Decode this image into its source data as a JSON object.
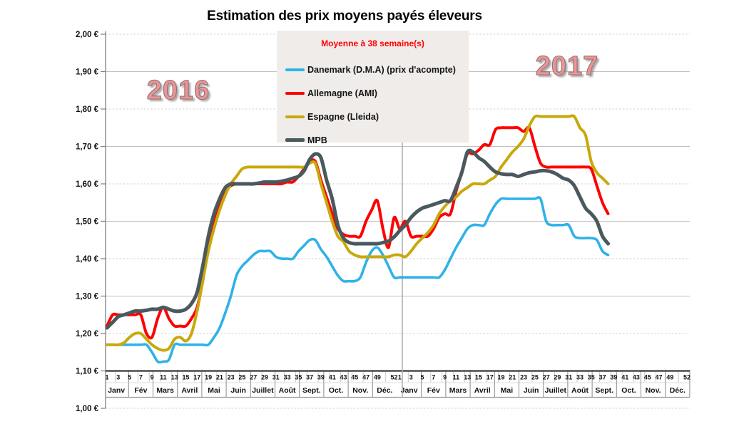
{
  "title": "Estimation des prix moyens payés éleveurs",
  "legend": {
    "title": "Moyenne à  38 semaine(s)",
    "title_color": "#FF0000",
    "items": [
      {
        "label": "Danemark (D.M.A) (prix d'acompte)",
        "color": "#2EB2E8",
        "thickness": 4
      },
      {
        "label": "Allemagne (AMI)",
        "color": "#FE0000",
        "thickness": 4
      },
      {
        "label": "Espagne (Lleida)",
        "color": "#C7A90C",
        "thickness": 4
      },
      {
        "label": "MPB",
        "color": "#4A595D",
        "thickness": 5
      }
    ]
  },
  "year_labels": {
    "left": {
      "text": "2016"
    },
    "right": {
      "text": "2017"
    }
  },
  "chart_data": {
    "type": "line",
    "title": "Estimation des prix moyens payés éleveurs",
    "ylabel": "",
    "xlabel": "",
    "ylim": [
      1.0,
      2.0
    ],
    "grid": "horizontal, alternating solid (1,10/1,30/1,50/1,70/1,90) and dashed (1,00/1,20/1,40/1,60/1,80/2,00)",
    "legend_position": "top-center",
    "y_axis": {
      "tick_labels": [
        "2,00 €",
        "1,90 €",
        "1,80 €",
        "1,70 €",
        "1,60 €",
        "1,50 €",
        "1,40 €",
        "1,30 €",
        "1,20 €",
        "1,10 €",
        "1,00 €"
      ],
      "tick_values": [
        2.0,
        1.9,
        1.8,
        1.7,
        1.6,
        1.5,
        1.4,
        1.3,
        1.2,
        1.1,
        1.0
      ],
      "axis_cross_value": 1.1
    },
    "x_axis": {
      "weeks_per_year": 52,
      "week_labels": [
        "1",
        "3",
        "5",
        "7",
        "9",
        "11",
        "13",
        "15",
        "17",
        "19",
        "21",
        "23",
        "25",
        "27",
        "29",
        "31",
        "33",
        "35",
        "37",
        "39",
        "41",
        "43",
        "45",
        "47",
        "49",
        "52"
      ],
      "months": [
        "Janv",
        "Fév",
        "Mars",
        "Avril",
        "Mai",
        "Juin",
        "Juillet",
        "Août",
        "Sept.",
        "Oct.",
        "Nov.",
        "Déc."
      ],
      "years": [
        "2016",
        "2017"
      ],
      "data_ends": "2017 week 38"
    },
    "series": [
      {
        "name": "Danemark (D.M.A) (prix d'acompte)",
        "color": "#2EB2E8",
        "width": 3.6,
        "values_2016": [
          1.17,
          1.17,
          1.17,
          1.17,
          1.17,
          1.17,
          1.17,
          1.17,
          1.15,
          1.125,
          1.125,
          1.13,
          1.17,
          1.17,
          1.17,
          1.17,
          1.17,
          1.17,
          1.17,
          1.19,
          1.215,
          1.255,
          1.3,
          1.355,
          1.38,
          1.395,
          1.41,
          1.42,
          1.42,
          1.42,
          1.405,
          1.4,
          1.4,
          1.4,
          1.42,
          1.435,
          1.45,
          1.45,
          1.425,
          1.405,
          1.38,
          1.355,
          1.34,
          1.34,
          1.34,
          1.35,
          1.39,
          1.42,
          1.43,
          1.41,
          1.38,
          1.35
        ],
        "values_2017": [
          1.35,
          1.35,
          1.35,
          1.35,
          1.35,
          1.35,
          1.35,
          1.35,
          1.37,
          1.4,
          1.43,
          1.455,
          1.48,
          1.49,
          1.49,
          1.49,
          1.52,
          1.545,
          1.56,
          1.56,
          1.56,
          1.56,
          1.56,
          1.56,
          1.56,
          1.56,
          1.5,
          1.49,
          1.49,
          1.49,
          1.49,
          1.46,
          1.455,
          1.455,
          1.455,
          1.45,
          1.42,
          1.41
        ]
      },
      {
        "name": "Allemagne (AMI)",
        "color": "#FE0000",
        "width": 4,
        "values_2016": [
          1.22,
          1.25,
          1.25,
          1.25,
          1.25,
          1.25,
          1.25,
          1.2,
          1.19,
          1.24,
          1.27,
          1.24,
          1.22,
          1.22,
          1.22,
          1.24,
          1.27,
          1.34,
          1.43,
          1.5,
          1.55,
          1.58,
          1.595,
          1.6,
          1.6,
          1.6,
          1.6,
          1.6,
          1.6,
          1.6,
          1.6,
          1.6,
          1.605,
          1.605,
          1.62,
          1.64,
          1.66,
          1.66,
          1.61,
          1.565,
          1.52,
          1.48,
          1.465,
          1.46,
          1.46,
          1.46,
          1.5,
          1.53,
          1.555,
          1.48,
          1.43,
          1.51
        ],
        "values_2017": [
          1.48,
          1.5,
          1.46,
          1.46,
          1.46,
          1.46,
          1.48,
          1.51,
          1.52,
          1.52,
          1.58,
          1.63,
          1.68,
          1.68,
          1.69,
          1.705,
          1.705,
          1.745,
          1.75,
          1.75,
          1.75,
          1.75,
          1.74,
          1.75,
          1.7,
          1.655,
          1.645,
          1.645,
          1.645,
          1.645,
          1.645,
          1.645,
          1.645,
          1.645,
          1.64,
          1.595,
          1.55,
          1.52
        ]
      },
      {
        "name": "Espagne (Lleida)",
        "color": "#C7A90C",
        "width": 4,
        "values_2016": [
          1.17,
          1.17,
          1.17,
          1.175,
          1.19,
          1.2,
          1.2,
          1.185,
          1.17,
          1.16,
          1.155,
          1.16,
          1.185,
          1.19,
          1.18,
          1.2,
          1.26,
          1.34,
          1.42,
          1.48,
          1.53,
          1.57,
          1.6,
          1.62,
          1.64,
          1.645,
          1.645,
          1.645,
          1.645,
          1.645,
          1.645,
          1.645,
          1.645,
          1.645,
          1.645,
          1.645,
          1.655,
          1.655,
          1.6,
          1.55,
          1.5,
          1.46,
          1.445,
          1.42,
          1.41,
          1.405,
          1.405,
          1.405,
          1.405,
          1.405,
          1.405,
          1.41
        ],
        "values_2017": [
          1.41,
          1.405,
          1.42,
          1.44,
          1.455,
          1.47,
          1.49,
          1.52,
          1.54,
          1.555,
          1.565,
          1.58,
          1.59,
          1.6,
          1.6,
          1.6,
          1.61,
          1.62,
          1.645,
          1.665,
          1.685,
          1.7,
          1.72,
          1.755,
          1.78,
          1.78,
          1.78,
          1.78,
          1.78,
          1.78,
          1.78,
          1.78,
          1.75,
          1.73,
          1.66,
          1.63,
          1.615,
          1.6
        ]
      },
      {
        "name": "MPB",
        "color": "#4A595D",
        "width": 5,
        "values_2016": [
          1.215,
          1.23,
          1.245,
          1.25,
          1.255,
          1.26,
          1.26,
          1.262,
          1.265,
          1.265,
          1.27,
          1.265,
          1.26,
          1.26,
          1.265,
          1.28,
          1.31,
          1.38,
          1.46,
          1.52,
          1.56,
          1.59,
          1.6,
          1.6,
          1.6,
          1.6,
          1.6,
          1.602,
          1.605,
          1.605,
          1.605,
          1.607,
          1.61,
          1.615,
          1.62,
          1.635,
          1.665,
          1.68,
          1.67,
          1.61,
          1.56,
          1.49,
          1.455,
          1.443,
          1.44,
          1.44,
          1.44,
          1.44,
          1.44,
          1.443,
          1.447,
          1.458
        ],
        "values_2017": [
          1.475,
          1.49,
          1.51,
          1.525,
          1.535,
          1.54,
          1.545,
          1.55,
          1.555,
          1.555,
          1.59,
          1.63,
          1.685,
          1.685,
          1.67,
          1.66,
          1.645,
          1.632,
          1.627,
          1.625,
          1.625,
          1.62,
          1.625,
          1.63,
          1.632,
          1.635,
          1.635,
          1.632,
          1.625,
          1.615,
          1.61,
          1.595,
          1.565,
          1.535,
          1.52,
          1.5,
          1.46,
          1.44
        ]
      }
    ]
  },
  "colors": {
    "grid_solid": "#C0C0C0",
    "grid_dashed": "#CDCDCD",
    "axis": "#7F7F7F",
    "axis_bold": "#4D4D4D",
    "month_separator": "#8C8C8C",
    "week_tick": "#C6C6C6",
    "year_divider": "#ABABAB",
    "year_text": "#EE9394",
    "legend_background": "#EFECEA"
  }
}
